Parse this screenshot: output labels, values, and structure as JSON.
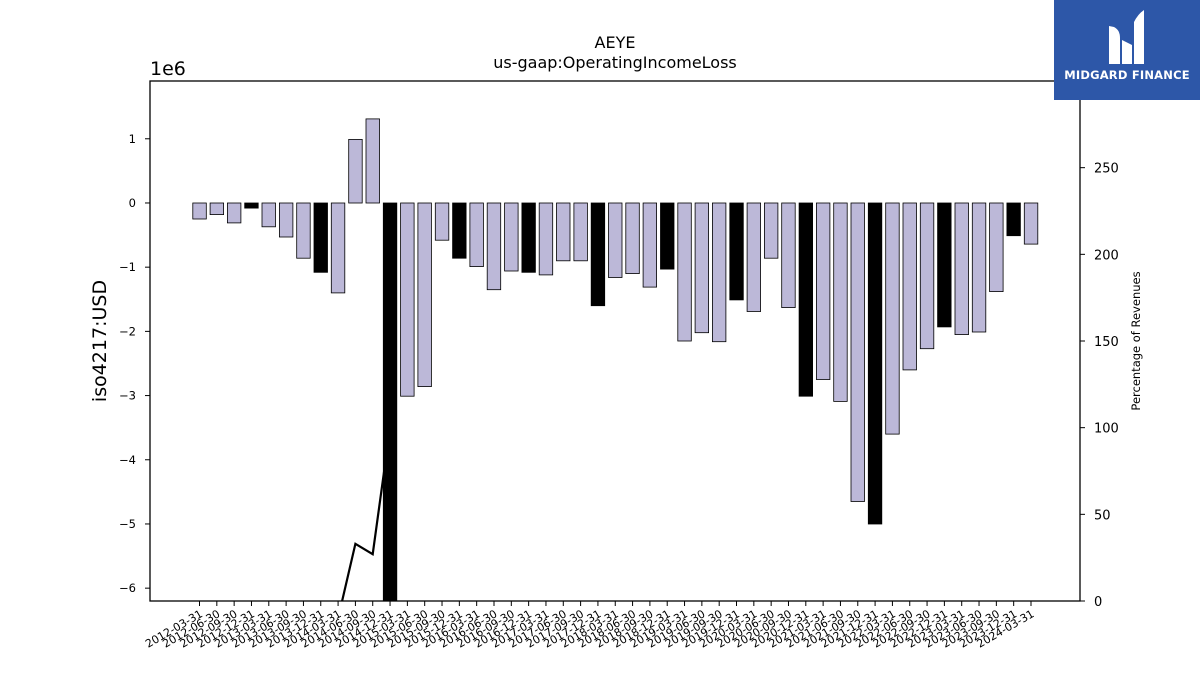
{
  "chart_data": {
    "type": "bar",
    "title": "AEYE",
    "subtitle": "us-gaap:OperatingIncomeLoss",
    "ylabel": "iso4217:USD",
    "y_offset_label": "1e6",
    "y2label": "Percentage of Revenues",
    "ylim": [
      -6.2,
      1.9
    ],
    "y_ticks": [
      1,
      0,
      -1,
      -2,
      -3,
      -4,
      -5,
      -6
    ],
    "y_tick_labels": [
      "1",
      "0",
      "−1",
      "−2",
      "−3",
      "−4",
      "−5",
      "−6"
    ],
    "y2lim": [
      0,
      300
    ],
    "y2_ticks": [
      0,
      50,
      100,
      150,
      200,
      250
    ],
    "bar_colors": {
      "quarter": "#bcb8d8",
      "year_end": "#000000"
    },
    "categories": [
      "2012-03-31",
      "2012-06-30",
      "2012-09-30",
      "2012-12-31",
      "2013-03-31",
      "2013-06-30",
      "2013-09-30",
      "2013-12-31",
      "2014-03-31",
      "2014-06-30",
      "2014-09-30",
      "2014-12-31",
      "2015-03-31",
      "2015-06-30",
      "2015-09-30",
      "2015-12-31",
      "2016-03-31",
      "2016-06-30",
      "2016-09-30",
      "2016-12-31",
      "2017-03-31",
      "2017-06-30",
      "2017-09-30",
      "2017-12-31",
      "2018-03-31",
      "2018-06-30",
      "2018-09-30",
      "2018-12-31",
      "2019-03-31",
      "2019-06-30",
      "2019-09-30",
      "2019-12-31",
      "2020-03-31",
      "2020-06-30",
      "2020-09-30",
      "2020-12-31",
      "2021-03-31",
      "2021-06-30",
      "2021-09-30",
      "2021-12-31",
      "2022-03-31",
      "2022-06-30",
      "2022-09-30",
      "2022-12-31",
      "2023-03-31",
      "2023-06-30",
      "2023-09-30",
      "2023-12-31",
      "2024-03-31"
    ],
    "values": [
      -0.25,
      -0.18,
      -0.31,
      -0.08,
      -0.37,
      -0.53,
      -0.86,
      -1.08,
      -1.4,
      0.99,
      1.31,
      -6.2,
      -3.01,
      -2.86,
      -0.58,
      -0.86,
      -0.99,
      -1.35,
      -1.06,
      -1.08,
      -1.12,
      -0.9,
      -0.9,
      -1.6,
      -1.16,
      -1.1,
      -1.31,
      -1.03,
      -2.15,
      -2.02,
      -2.16,
      -1.51,
      -1.69,
      -0.86,
      -1.63,
      -3.01,
      -2.75,
      -3.09,
      -4.65,
      -5.0,
      -3.6,
      -2.6,
      -2.27,
      -1.93,
      -2.05,
      -2.01,
      -1.38,
      -0.51,
      -0.64
    ],
    "year_end": [
      false,
      false,
      false,
      true,
      false,
      false,
      false,
      true,
      false,
      false,
      false,
      true,
      false,
      false,
      false,
      true,
      false,
      false,
      false,
      true,
      false,
      false,
      false,
      true,
      false,
      false,
      false,
      true,
      false,
      false,
      false,
      true,
      false,
      false,
      false,
      true,
      false,
      false,
      false,
      true,
      false,
      false,
      false,
      true,
      false,
      false,
      false,
      true,
      false
    ],
    "line_series": {
      "axis": "right",
      "x": [
        "2014-03-31",
        "2014-06-30",
        "2014-09-30",
        "2014-12-31"
      ],
      "values": [
        -10,
        33,
        27,
        100
      ]
    },
    "grid": false
  },
  "logo": {
    "text": "MIDGARD FINANCE"
  }
}
